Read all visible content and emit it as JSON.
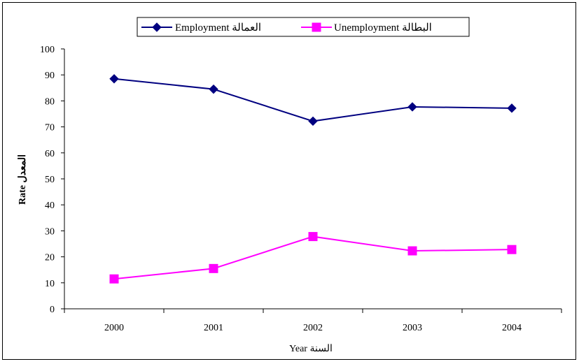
{
  "chart_data": {
    "type": "line",
    "categories": [
      "2000",
      "2001",
      "2002",
      "2003",
      "2004"
    ],
    "series": [
      {
        "name": "Employment العمالة",
        "values": [
          88.5,
          84.5,
          72.2,
          77.7,
          77.2
        ],
        "color": "#000080",
        "marker": "diamond"
      },
      {
        "name": "Unemployment البطالة",
        "values": [
          11.5,
          15.5,
          27.8,
          22.3,
          22.8
        ],
        "color": "#FF00FF",
        "marker": "square"
      }
    ],
    "xlabel": "Year السنة",
    "ylabel": "Rate المعدل",
    "ylim": [
      0,
      100
    ],
    "yticks": [
      0,
      10,
      20,
      30,
      40,
      50,
      60,
      70,
      80,
      90,
      100
    ],
    "grid": false,
    "legend_position": "top"
  }
}
